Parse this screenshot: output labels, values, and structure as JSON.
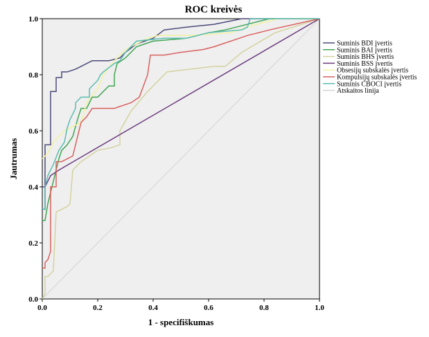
{
  "chart_data": {
    "type": "line",
    "title": "ROC kreivės",
    "xlabel": "1 - specifiškumas",
    "ylabel": "Jautrumas",
    "xlim": [
      0,
      1
    ],
    "ylim": [
      0,
      1
    ],
    "x_ticks": [
      "0.0",
      "0.2",
      "0.4",
      "0.6",
      "0.8",
      "1.0"
    ],
    "y_ticks": [
      "0.0",
      "0.2",
      "0.4",
      "0.6",
      "0.8",
      "1.0"
    ],
    "grid": false,
    "legend_position": "right",
    "series": [
      {
        "name": "Suminis BDI įvertis",
        "color": "#4b4a7a",
        "points": [
          [
            0,
            0.32
          ],
          [
            0.01,
            0.32
          ],
          [
            0.01,
            0.55
          ],
          [
            0.03,
            0.55
          ],
          [
            0.03,
            0.74
          ],
          [
            0.05,
            0.74
          ],
          [
            0.05,
            0.79
          ],
          [
            0.07,
            0.79
          ],
          [
            0.07,
            0.81
          ],
          [
            0.09,
            0.81
          ],
          [
            0.12,
            0.82
          ],
          [
            0.14,
            0.83
          ],
          [
            0.16,
            0.84
          ],
          [
            0.18,
            0.85
          ],
          [
            0.2,
            0.85
          ],
          [
            0.24,
            0.85
          ],
          [
            0.28,
            0.86
          ],
          [
            0.3,
            0.88
          ],
          [
            0.34,
            0.91
          ],
          [
            0.4,
            0.93
          ],
          [
            0.44,
            0.96
          ],
          [
            0.52,
            0.97
          ],
          [
            0.62,
            0.98
          ],
          [
            0.72,
            1.0
          ],
          [
            1.0,
            1.0
          ]
        ]
      },
      {
        "name": "Suminis BAI įvertis",
        "color": "#3fa451",
        "points": [
          [
            0,
            0.28
          ],
          [
            0.01,
            0.28
          ],
          [
            0.02,
            0.34
          ],
          [
            0.04,
            0.42
          ],
          [
            0.06,
            0.5
          ],
          [
            0.07,
            0.53
          ],
          [
            0.09,
            0.55
          ],
          [
            0.11,
            0.58
          ],
          [
            0.13,
            0.65
          ],
          [
            0.14,
            0.68
          ],
          [
            0.16,
            0.68
          ],
          [
            0.18,
            0.72
          ],
          [
            0.2,
            0.72
          ],
          [
            0.24,
            0.76
          ],
          [
            0.26,
            0.76
          ],
          [
            0.26,
            0.8
          ],
          [
            0.27,
            0.84
          ],
          [
            0.3,
            0.86
          ],
          [
            0.34,
            0.9
          ],
          [
            0.4,
            0.92
          ],
          [
            0.52,
            0.93
          ],
          [
            0.6,
            0.95
          ],
          [
            0.66,
            0.96
          ],
          [
            0.82,
            1.0
          ],
          [
            1.0,
            1.0
          ]
        ]
      },
      {
        "name": "Suminis BHS įvertis",
        "color": "#d4d29f",
        "points": [
          [
            0,
            0
          ],
          [
            0.01,
            0.02
          ],
          [
            0.01,
            0.08
          ],
          [
            0.02,
            0.08
          ],
          [
            0.04,
            0.1
          ],
          [
            0.05,
            0.31
          ],
          [
            0.09,
            0.33
          ],
          [
            0.1,
            0.34
          ],
          [
            0.11,
            0.46
          ],
          [
            0.14,
            0.49
          ],
          [
            0.2,
            0.53
          ],
          [
            0.25,
            0.54
          ],
          [
            0.28,
            0.55
          ],
          [
            0.28,
            0.6
          ],
          [
            0.32,
            0.67
          ],
          [
            0.38,
            0.74
          ],
          [
            0.45,
            0.81
          ],
          [
            0.62,
            0.83
          ],
          [
            0.66,
            0.83
          ],
          [
            0.72,
            0.88
          ],
          [
            0.84,
            0.95
          ],
          [
            1.0,
            1.0
          ]
        ]
      },
      {
        "name": "Suminis BSS įvertis",
        "color": "#6a3a7e",
        "points": [
          [
            0,
            0.4
          ],
          [
            0.01,
            0.4
          ],
          [
            0.03,
            0.44
          ],
          [
            0.06,
            0.46
          ],
          [
            1.0,
            1.0
          ]
        ]
      },
      {
        "name": "Obsesijų subskalės įvertis",
        "color": "#f2f2a0",
        "points": [
          [
            0,
            0.5
          ],
          [
            0.02,
            0.52
          ],
          [
            0.04,
            0.56
          ],
          [
            0.06,
            0.58
          ],
          [
            0.08,
            0.6
          ],
          [
            0.1,
            0.61
          ],
          [
            0.12,
            0.62
          ],
          [
            0.14,
            0.63
          ],
          [
            0.16,
            0.7
          ],
          [
            0.2,
            0.75
          ],
          [
            0.22,
            0.8
          ],
          [
            0.26,
            0.85
          ],
          [
            0.3,
            0.89
          ],
          [
            0.34,
            0.91
          ],
          [
            0.38,
            0.93
          ],
          [
            0.42,
            0.94
          ],
          [
            0.48,
            0.94
          ],
          [
            0.54,
            0.94
          ],
          [
            0.68,
            0.95
          ],
          [
            0.74,
            0.97
          ],
          [
            0.85,
            1.0
          ],
          [
            1.0,
            1.0
          ]
        ]
      },
      {
        "name": "Kompulsijų subskalės įvertis",
        "color": "#d8605e",
        "points": [
          [
            0,
            0.11
          ],
          [
            0.01,
            0.11
          ],
          [
            0.01,
            0.13
          ],
          [
            0.02,
            0.14
          ],
          [
            0.03,
            0.17
          ],
          [
            0.03,
            0.4
          ],
          [
            0.05,
            0.4
          ],
          [
            0.05,
            0.49
          ],
          [
            0.07,
            0.49
          ],
          [
            0.11,
            0.51
          ],
          [
            0.14,
            0.63
          ],
          [
            0.16,
            0.65
          ],
          [
            0.18,
            0.68
          ],
          [
            0.23,
            0.68
          ],
          [
            0.26,
            0.68
          ],
          [
            0.32,
            0.7
          ],
          [
            0.35,
            0.72
          ],
          [
            0.38,
            0.8
          ],
          [
            0.39,
            0.87
          ],
          [
            0.4,
            0.87
          ],
          [
            0.44,
            0.87
          ],
          [
            0.5,
            0.88
          ],
          [
            0.58,
            0.89
          ],
          [
            0.62,
            0.9
          ],
          [
            0.74,
            0.94
          ],
          [
            0.82,
            0.96
          ],
          [
            1.0,
            1.0
          ]
        ]
      },
      {
        "name": "Suminis CBOCI įvertis",
        "color": "#5abcb1",
        "points": [
          [
            0,
            0.32
          ],
          [
            0.01,
            0.32
          ],
          [
            0.01,
            0.4
          ],
          [
            0.02,
            0.44
          ],
          [
            0.04,
            0.48
          ],
          [
            0.06,
            0.53
          ],
          [
            0.08,
            0.56
          ],
          [
            0.09,
            0.61
          ],
          [
            0.1,
            0.64
          ],
          [
            0.12,
            0.68
          ],
          [
            0.12,
            0.7
          ],
          [
            0.14,
            0.72
          ],
          [
            0.17,
            0.72
          ],
          [
            0.17,
            0.75
          ],
          [
            0.2,
            0.78
          ],
          [
            0.21,
            0.8
          ],
          [
            0.22,
            0.81
          ],
          [
            0.26,
            0.84
          ],
          [
            0.28,
            0.85
          ],
          [
            0.3,
            0.88
          ],
          [
            0.34,
            0.92
          ],
          [
            0.44,
            0.93
          ],
          [
            0.52,
            0.93
          ],
          [
            0.6,
            0.95
          ],
          [
            0.72,
            0.96
          ],
          [
            0.74,
            0.97
          ],
          [
            0.75,
            1.0
          ],
          [
            1.0,
            1.0
          ]
        ]
      },
      {
        "name": "Atskaitos linija",
        "color": "#d3d3d3",
        "points": [
          [
            0,
            0
          ],
          [
            1,
            1
          ]
        ]
      }
    ]
  }
}
